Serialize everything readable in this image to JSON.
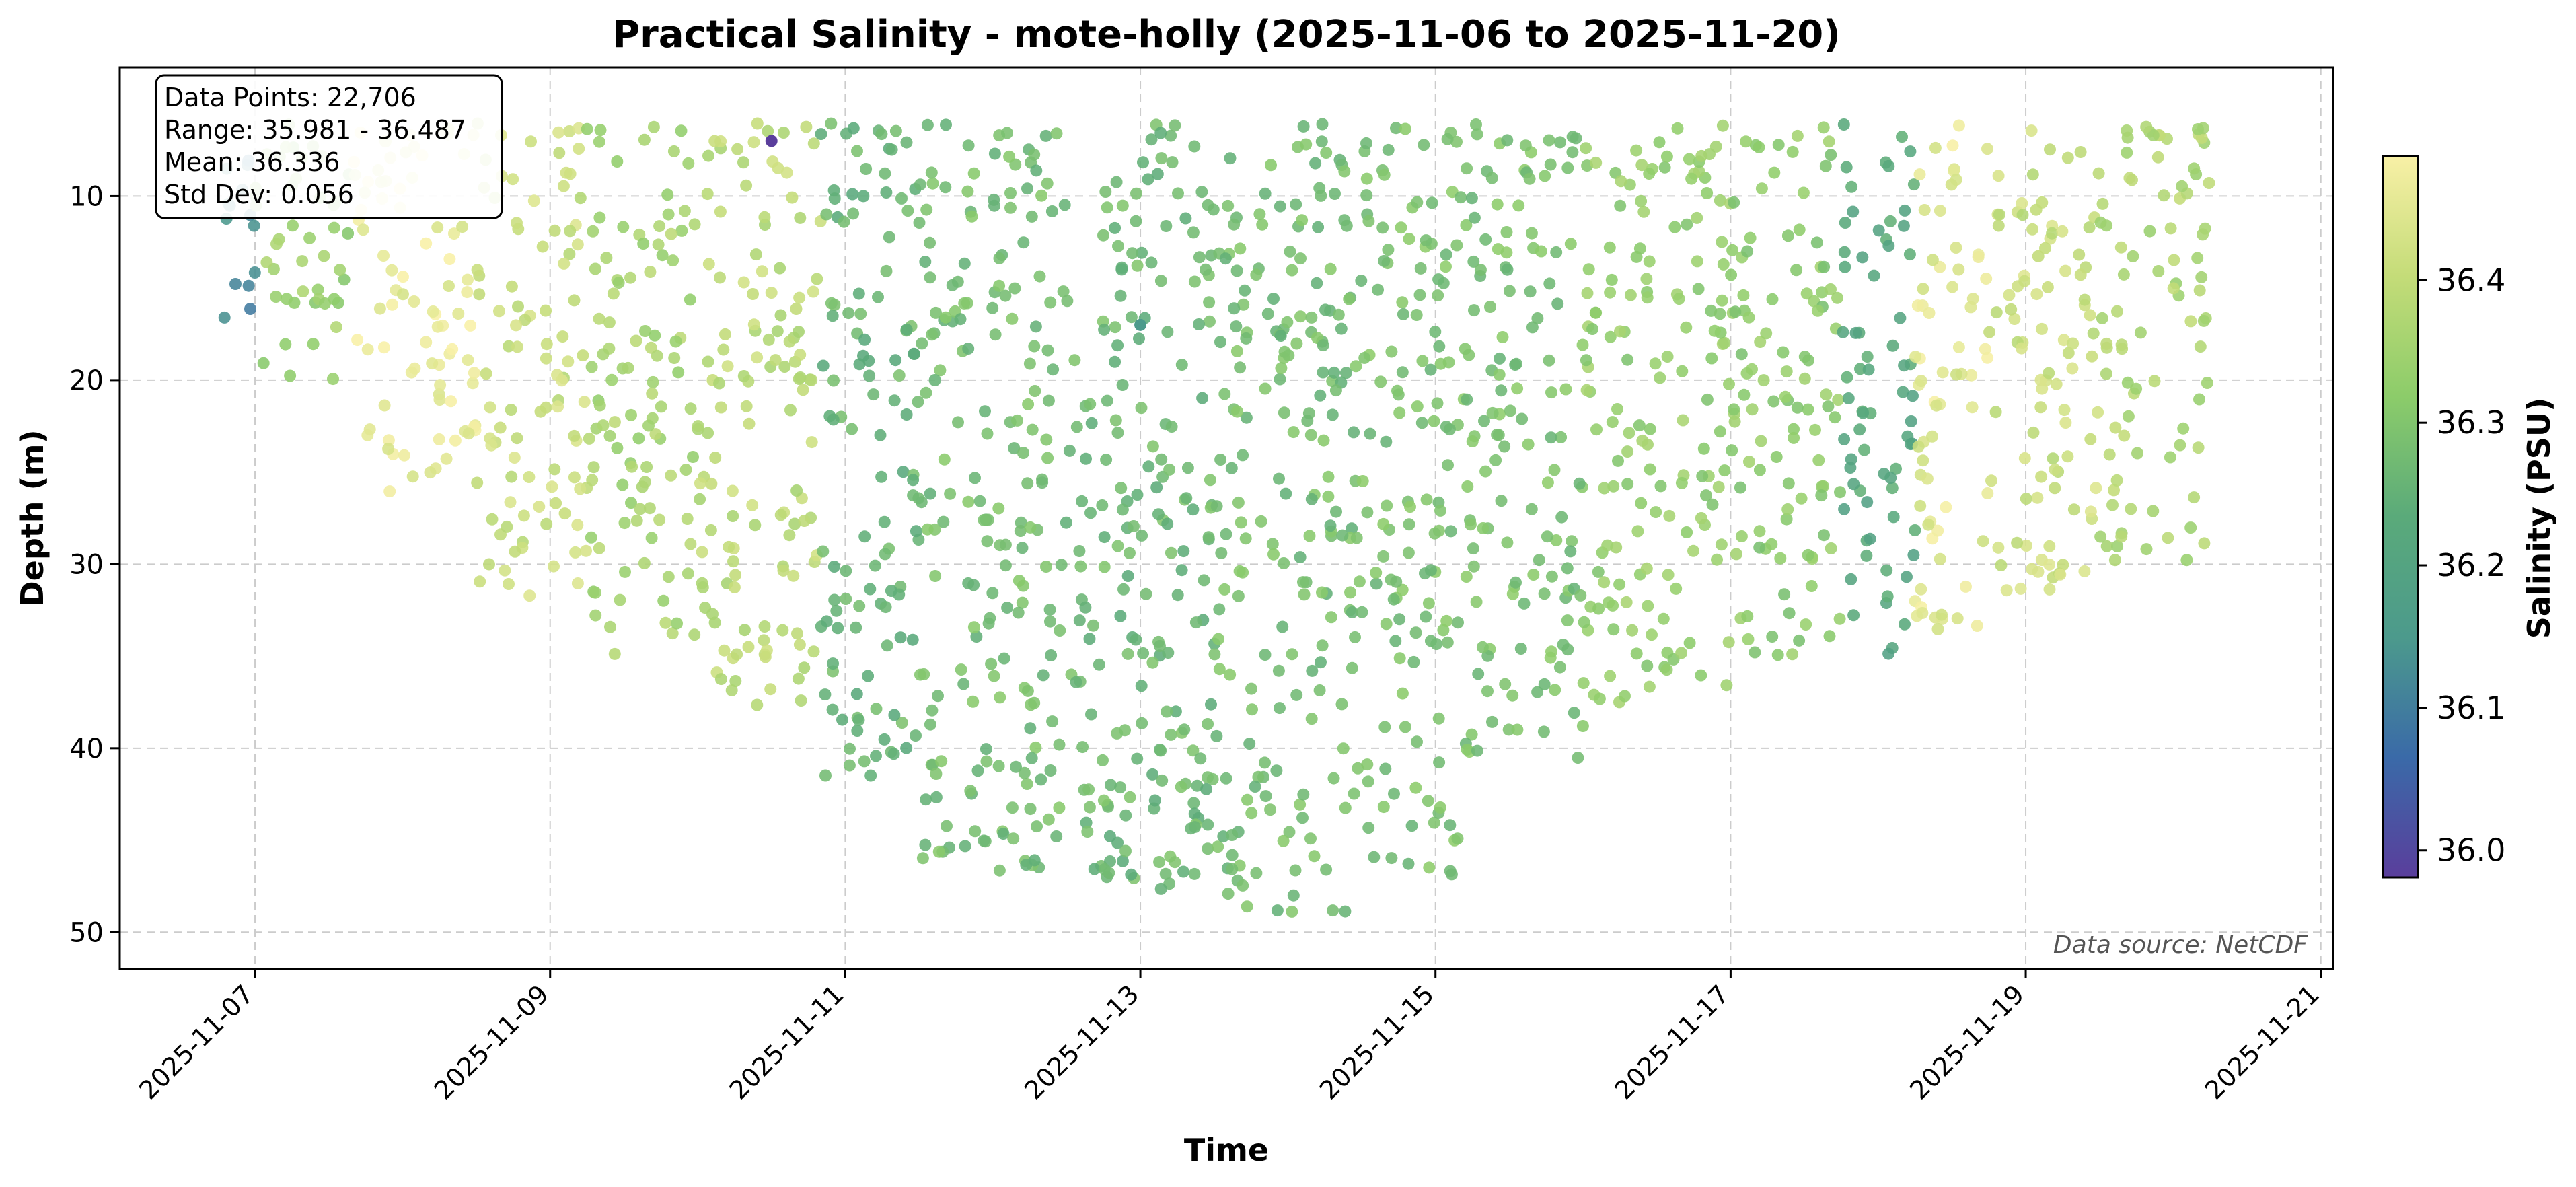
{
  "chart_data": {
    "type": "scatter",
    "title": "Practical Salinity - mote-holly (2025-11-06 to 2025-11-20)",
    "xlabel": "Time",
    "ylabel": "Depth (m)",
    "x_type": "date",
    "xlim": [
      "2025-11-06T02:00",
      "2025-11-21T02:00"
    ],
    "x_ticks": [
      "2025-11-07",
      "2025-11-09",
      "2025-11-11",
      "2025-11-13",
      "2025-11-15",
      "2025-11-17",
      "2025-11-19",
      "2025-11-21"
    ],
    "ylim": [
      52,
      3
    ],
    "y_inverted": true,
    "y_ticks": [
      10,
      20,
      30,
      40,
      50
    ],
    "grid": true,
    "colorbar": {
      "label": "Salinity (PSU)",
      "range": [
        35.981,
        36.487
      ],
      "ticks": [
        36.0,
        36.1,
        36.2,
        36.3,
        36.4
      ],
      "colormap": [
        "#5a3e9c",
        "#3a6aa8",
        "#4c9a8c",
        "#5aaa7a",
        "#8ccc6a",
        "#c4dc78",
        "#f8f0a6"
      ]
    },
    "stats_box": {
      "lines": [
        "Data Points: 22,706",
        "Range: 35.981 - 36.487",
        "Mean: 36.336",
        "Std Dev: 0.056"
      ]
    },
    "source_note": "Data source: NetCDF",
    "segments": [
      {
        "start": "2025-11-06T18:00",
        "end": "2025-11-07T00:00",
        "depth_min": 6,
        "depth_max": 18,
        "salinity": 36.12
      },
      {
        "start": "2025-11-07T00:00",
        "end": "2025-11-07T16:00",
        "depth_min": 6,
        "depth_max": 20,
        "salinity": 36.34
      },
      {
        "start": "2025-11-07T16:00",
        "end": "2025-11-08T12:00",
        "depth_min": 6,
        "depth_max": 27,
        "salinity": 36.46
      },
      {
        "start": "2025-11-08T12:00",
        "end": "2025-11-09T06:00",
        "depth_min": 6,
        "depth_max": 32,
        "salinity": 36.41
      },
      {
        "start": "2025-11-09T06:00",
        "end": "2025-11-10T00:00",
        "depth_min": 6,
        "depth_max": 35,
        "salinity": 36.36
      },
      {
        "start": "2025-11-10T00:00",
        "end": "2025-11-10T20:00",
        "depth_min": 6,
        "depth_max": 38,
        "salinity": 36.39
      },
      {
        "start": "2025-11-10T20:00",
        "end": "2025-11-11T12:00",
        "depth_min": 6,
        "depth_max": 42,
        "salinity": 36.26
      },
      {
        "start": "2025-11-11T12:00",
        "end": "2025-11-12T12:00",
        "depth_min": 6,
        "depth_max": 47,
        "salinity": 36.28
      },
      {
        "start": "2025-11-12T12:00",
        "end": "2025-11-13T12:00",
        "depth_min": 6,
        "depth_max": 48,
        "salinity": 36.27
      },
      {
        "start": "2025-11-13T12:00",
        "end": "2025-11-14T12:00",
        "depth_min": 6,
        "depth_max": 49,
        "salinity": 36.28
      },
      {
        "start": "2025-11-14T12:00",
        "end": "2025-11-15T06:00",
        "depth_min": 6,
        "depth_max": 47,
        "salinity": 36.29
      },
      {
        "start": "2025-11-15T06:00",
        "end": "2025-11-16T00:00",
        "depth_min": 6,
        "depth_max": 41,
        "salinity": 36.29
      },
      {
        "start": "2025-11-16T00:00",
        "end": "2025-11-17T00:00",
        "depth_min": 6,
        "depth_max": 38,
        "salinity": 36.33
      },
      {
        "start": "2025-11-17T00:00",
        "end": "2025-11-17T18:00",
        "depth_min": 6,
        "depth_max": 36,
        "salinity": 36.32
      },
      {
        "start": "2025-11-17T18:00",
        "end": "2025-11-18T06:00",
        "depth_min": 6,
        "depth_max": 35,
        "salinity": 36.22
      },
      {
        "start": "2025-11-18T06:00",
        "end": "2025-11-18T18:00",
        "depth_min": 6,
        "depth_max": 34,
        "salinity": 36.45
      },
      {
        "start": "2025-11-18T18:00",
        "end": "2025-11-19T12:00",
        "depth_min": 6,
        "depth_max": 32,
        "salinity": 36.41
      },
      {
        "start": "2025-11-19T12:00",
        "end": "2025-11-20T06:00",
        "depth_min": 6,
        "depth_max": 30,
        "salinity": 36.37
      }
    ],
    "outliers": [
      {
        "time": "2025-11-10T12:00",
        "depth": 7,
        "salinity": 35.981
      },
      {
        "time": "2025-11-13T00:00",
        "depth": 17,
        "salinity": 36.15
      }
    ]
  }
}
